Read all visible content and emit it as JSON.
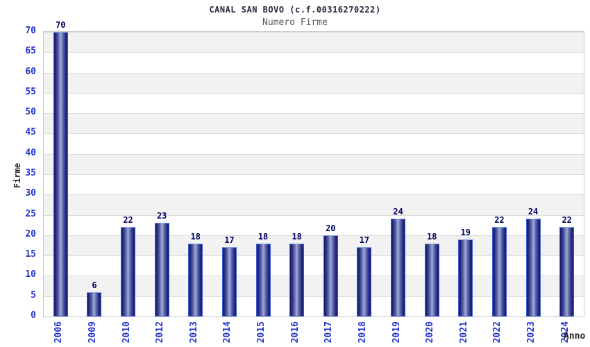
{
  "header": {
    "title": "CANAL SAN BOVO (c.f.00316270222)",
    "subtitle": "Numero Firme"
  },
  "axes": {
    "y_label": "Firme",
    "x_label": "Anno",
    "y_ticks": [
      "0",
      "5",
      "10",
      "15",
      "20",
      "25",
      "30",
      "35",
      "40",
      "45",
      "50",
      "55",
      "60",
      "65",
      "70"
    ]
  },
  "chart_data": {
    "type": "bar",
    "title": "CANAL SAN BOVO (c.f.00316270222)",
    "subtitle": "Numero Firme",
    "xlabel": "Anno",
    "ylabel": "Firme",
    "categories": [
      "2006",
      "2009",
      "2010",
      "2012",
      "2013",
      "2014",
      "2015",
      "2016",
      "2017",
      "2018",
      "2019",
      "2020",
      "2021",
      "2022",
      "2023",
      "2024"
    ],
    "values": [
      70,
      6,
      22,
      23,
      18,
      17,
      18,
      18,
      20,
      17,
      24,
      18,
      19,
      22,
      24,
      22
    ],
    "ylim": [
      0,
      70
    ],
    "ytick_step": 5,
    "grid": true,
    "bar_value_labels": true,
    "legend_position": "none"
  },
  "colors": {
    "bar_dark": "#1a1a70",
    "bar_mid": "#5a64a8",
    "bar_light": "#a2aad4",
    "bar_border": "#3c5ed8",
    "bar_border_top": "#7aa4ea",
    "tick_label": "#2233cc",
    "value_label": "#000066",
    "band_gray": "#f2f2f2",
    "band_white": "#ffffff",
    "grid_line": "#dcdcdc",
    "frame_border": "#c8c8c8",
    "title_color": "#26263a",
    "subtitle_color": "#5a5a5a",
    "axis_title_color": "#222222"
  }
}
